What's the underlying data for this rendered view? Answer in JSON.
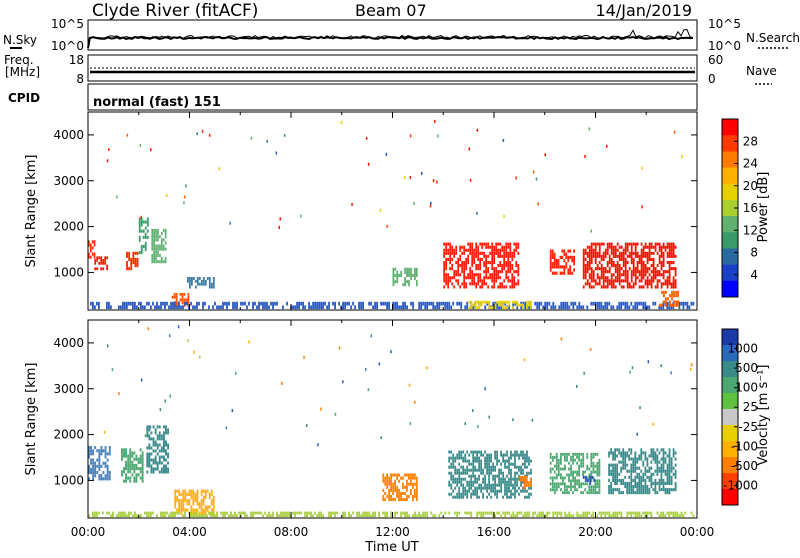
{
  "header": {
    "station": "Clyde River (fitACF)",
    "beam": "Beam 07",
    "date": "14/Jan/2019"
  },
  "nsky_panel": {
    "left_label": "N.Sky",
    "right_label": "N.Search",
    "left_ticks": [
      "10^5",
      "10^0"
    ],
    "right_ticks": [
      "10^5",
      "10^0"
    ]
  },
  "freq_panel": {
    "left_label_1": "Freq.",
    "left_label_2": "[MHz]",
    "right_label": "Nave",
    "left_ticks": [
      "18",
      "8"
    ],
    "right_ticks": [
      "60",
      "0"
    ]
  },
  "cpid_panel": {
    "label": "CPID",
    "text": "normal (fast) 151"
  },
  "x_axis": {
    "title": "Time UT",
    "ticks": [
      "00:00",
      "04:00",
      "08:00",
      "12:00",
      "16:00",
      "20:00",
      "00:00"
    ]
  },
  "power_panel": {
    "ylabel": "Slant Range [km]",
    "yticks": [
      "4000",
      "3000",
      "2000",
      "1000"
    ],
    "colorbar_label": "Power [dB]",
    "colorbar_ticks": [
      "28",
      "24",
      "20",
      "16",
      "12",
      "8",
      "4"
    ],
    "colorbar_colors": [
      "#ff0000",
      "#ff3a00",
      "#ff7a00",
      "#ffb000",
      "#e8d000",
      "#a8d030",
      "#60b070",
      "#3a9a6a",
      "#2a6aa0",
      "#1a40c8",
      "#0000ff"
    ]
  },
  "velocity_panel": {
    "ylabel": "Slant Range [km]",
    "yticks": [
      "4000",
      "3000",
      "2000",
      "1000"
    ],
    "colorbar_label": "Velocity [m s⁻¹]",
    "colorbar_ticks": [
      "1000",
      "500",
      "100",
      "25",
      "-25",
      "-100",
      "-500",
      "-1000"
    ],
    "colorbar_colors": [
      "#1a3aa8",
      "#2a6ab8",
      "#3a8a8a",
      "#4aa870",
      "#60c040",
      "#c8c8c8",
      "#e8d000",
      "#ffb000",
      "#ff8000",
      "#ff4000",
      "#ff0000"
    ]
  },
  "chart_data": {
    "type": "heatmap",
    "x_unit": "hours UT",
    "xlim": [
      0,
      24
    ],
    "ylim_km": [
      180,
      4500
    ],
    "power_regions": [
      {
        "t0": 0.0,
        "t1": 0.3,
        "r0": 1300,
        "r1": 1700,
        "color": "#ff2a00"
      },
      {
        "t0": 0.25,
        "t1": 0.8,
        "r0": 1050,
        "r1": 1350,
        "color": "#ff1000"
      },
      {
        "t0": 1.5,
        "t1": 2.0,
        "r0": 1050,
        "r1": 1450,
        "color": "#ff3000"
      },
      {
        "t0": 2.0,
        "t1": 2.4,
        "r0": 1400,
        "r1": 2200,
        "color": "#3a9a6a"
      },
      {
        "t0": 2.5,
        "t1": 3.1,
        "r0": 1200,
        "r1": 1950,
        "color": "#60b070"
      },
      {
        "t0": 3.3,
        "t1": 4.0,
        "r0": 250,
        "r1": 550,
        "color": "#ff5000"
      },
      {
        "t0": 3.9,
        "t1": 5.0,
        "r0": 650,
        "r1": 900,
        "color": "#3a7aa0"
      },
      {
        "t0": 0.0,
        "t1": 23.9,
        "r0": 200,
        "r1": 360,
        "color": "#2a5ac0"
      },
      {
        "t0": 12.0,
        "t1": 13.0,
        "r0": 700,
        "r1": 1100,
        "color": "#60b070"
      },
      {
        "t0": 14.0,
        "t1": 17.0,
        "r0": 650,
        "r1": 1650,
        "color": "#ff1a00"
      },
      {
        "t0": 15.0,
        "t1": 17.5,
        "r0": 200,
        "r1": 380,
        "color": "#e8d000"
      },
      {
        "t0": 18.2,
        "t1": 19.2,
        "r0": 950,
        "r1": 1500,
        "color": "#ff2000"
      },
      {
        "t0": 19.5,
        "t1": 23.2,
        "r0": 650,
        "r1": 1650,
        "color": "#ff0a00"
      },
      {
        "t0": 22.5,
        "t1": 23.3,
        "r0": 250,
        "r1": 600,
        "color": "#ff6000"
      }
    ],
    "velocity_regions": [
      {
        "t0": 0.0,
        "t1": 0.9,
        "r0": 1000,
        "r1": 1750,
        "color": "#4a80b8"
      },
      {
        "t0": 1.3,
        "t1": 2.2,
        "r0": 950,
        "r1": 1700,
        "color": "#4aa870"
      },
      {
        "t0": 2.3,
        "t1": 3.2,
        "r0": 1150,
        "r1": 2200,
        "color": "#3a8a8a"
      },
      {
        "t0": 3.4,
        "t1": 5.0,
        "r0": 250,
        "r1": 800,
        "color": "#ffb000"
      },
      {
        "t0": 0.0,
        "t1": 23.9,
        "r0": 200,
        "r1": 320,
        "color": "#a8d040"
      },
      {
        "t0": 11.6,
        "t1": 13.0,
        "r0": 550,
        "r1": 1150,
        "color": "#ff8000"
      },
      {
        "t0": 14.2,
        "t1": 17.5,
        "r0": 600,
        "r1": 1650,
        "color": "#3a8a8a"
      },
      {
        "t0": 17.0,
        "t1": 17.5,
        "r0": 800,
        "r1": 1100,
        "color": "#ff8000"
      },
      {
        "t0": 18.2,
        "t1": 20.2,
        "r0": 700,
        "r1": 1600,
        "color": "#4aa870"
      },
      {
        "t0": 20.5,
        "t1": 23.2,
        "r0": 700,
        "r1": 1700,
        "color": "#3a8a8a"
      },
      {
        "t0": 19.5,
        "t1": 20.0,
        "r0": 900,
        "r1": 1100,
        "color": "#2a5ab0"
      }
    ]
  }
}
